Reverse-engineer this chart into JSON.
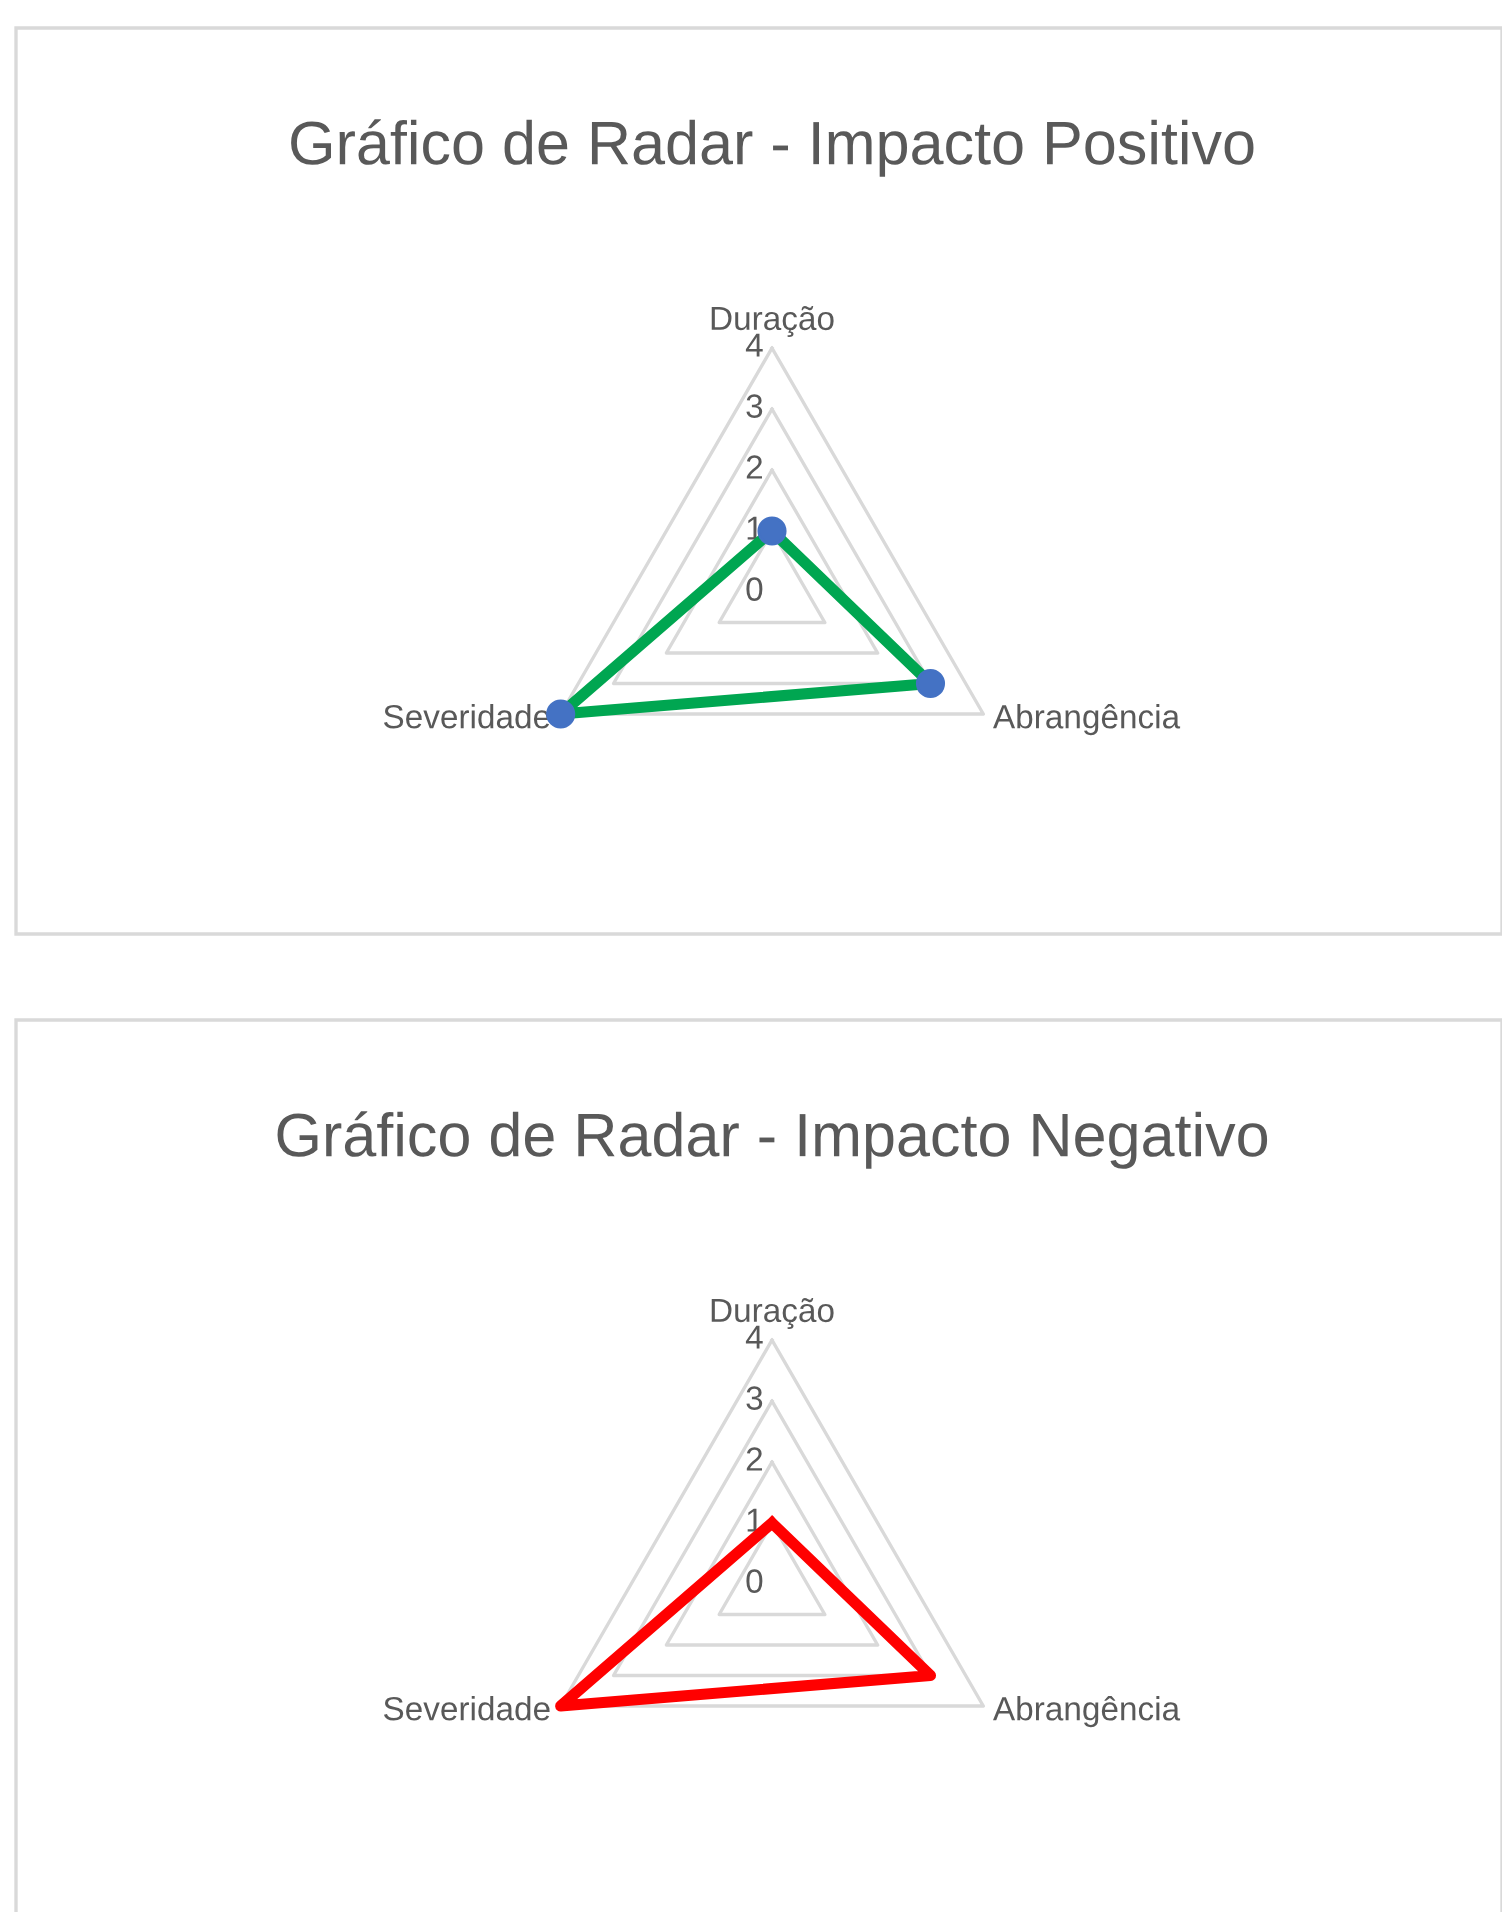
{
  "chart_data": [
    {
      "type": "radar",
      "title": "Gráfico de Radar - Impacto Positivo",
      "categories": [
        "Duração",
        "Abrangência",
        "Severidade"
      ],
      "ylim": [
        0,
        4
      ],
      "yticks": [
        0,
        1,
        2,
        3,
        4
      ],
      "grid": true,
      "marker": "circle",
      "series": [
        {
          "color": "#00a651",
          "colors": [
            "#4472c4",
            "#4472c4",
            "#4472c4"
          ],
          "values": [
            1,
            3,
            4
          ]
        }
      ]
    },
    {
      "type": "radar",
      "title": "Gráfico de Radar - Impacto Negativo",
      "categories": [
        "Duração",
        "Abrangência",
        "Severidade"
      ],
      "ylim": [
        0,
        4
      ],
      "yticks": [
        0,
        1,
        2,
        3,
        4
      ],
      "grid": true,
      "series": [
        {
          "color": "#ff0000",
          "values": [
            1,
            3,
            4
          ]
        }
      ]
    }
  ]
}
